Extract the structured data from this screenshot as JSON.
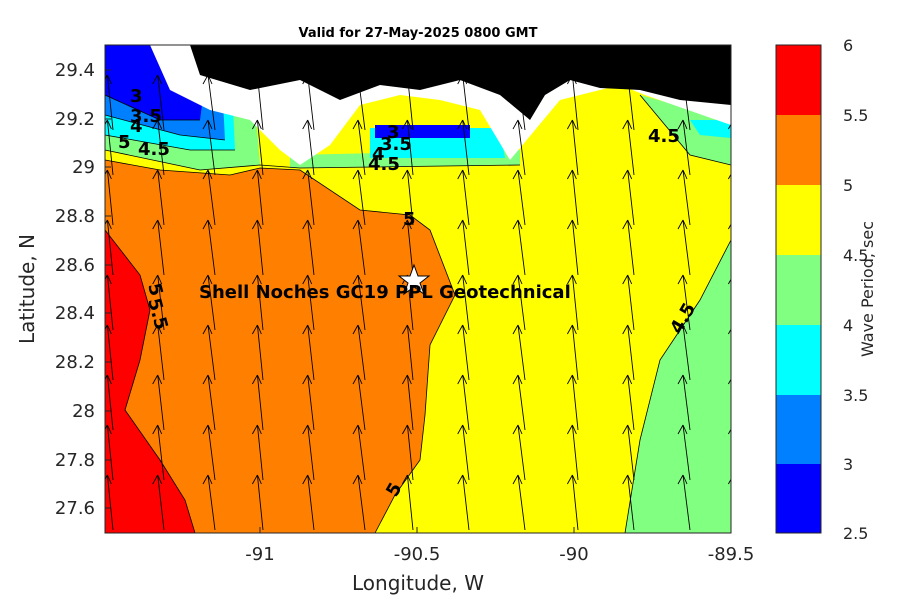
{
  "title": "Valid for 27-May-2025 0800 GMT",
  "xlabel": "Longitude, W",
  "ylabel": "Latitude, N",
  "colorbar_label": "Wave Period, sec",
  "site_label": "Shell Noches   GC19 PPL  Geotechnical",
  "x_ticks": [
    "-91",
    "-90.5",
    "-90",
    "-89.5"
  ],
  "y_ticks": [
    "29.4",
    "29.2",
    "29",
    "28.8",
    "28.6",
    "28.4",
    "28.2",
    "28",
    "27.8",
    "27.6"
  ],
  "colorbar_ticks": [
    "6",
    "5.5",
    "5",
    "4.5",
    "4",
    "3.5",
    "3",
    "2.5"
  ],
  "contour_labels": [
    "3",
    "3.5",
    "4",
    "5",
    "4.5",
    "3",
    "3.5",
    "4",
    "4.5",
    "5",
    "4.5",
    "5",
    "5.5",
    "4.5",
    "5"
  ],
  "colors": {
    "c25": "#0000ff",
    "c30": "#0080ff",
    "c35": "#00ffff",
    "c40": "#80ff80",
    "c45": "#ffff00",
    "c50": "#ff8000",
    "c55": "#ff0000",
    "land": "#000000"
  },
  "chart_data": {
    "type": "contourf",
    "xlim": [
      -91.5,
      -89.5
    ],
    "ylim": [
      27.5,
      29.5
    ],
    "clim": [
      2.5,
      6
    ],
    "levels": [
      2.5,
      3,
      3.5,
      4,
      4.5,
      5,
      5.5,
      6
    ],
    "site": {
      "lon": -90.52,
      "lat": 28.55,
      "marker": "star"
    },
    "wave_direction_arrows": true
  }
}
